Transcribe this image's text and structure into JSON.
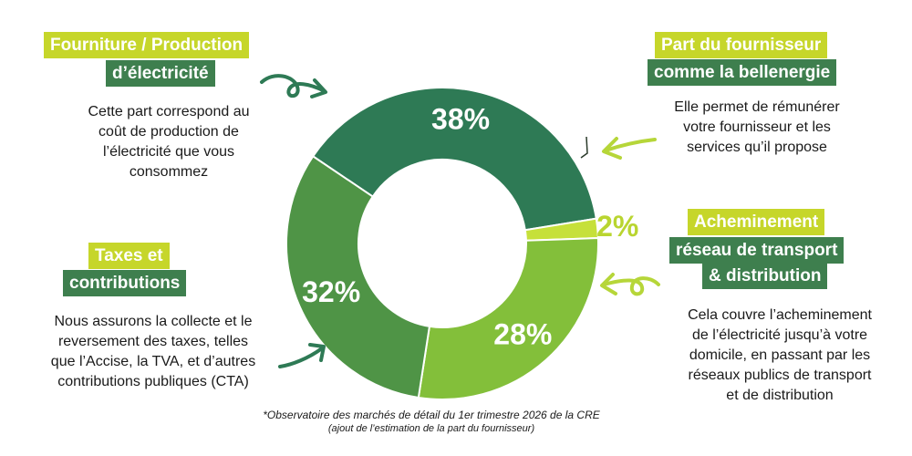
{
  "colors": {
    "fourniture": "#2e7a55",
    "fournisseur": "#c6e03a",
    "acheminement": "#83bf3a",
    "taxes": "#4f9446",
    "label_lime": "#c6d62a",
    "label_green": "#3e7f4e",
    "arrow_green": "#2e7a55",
    "arrow_lime": "#b6d639"
  },
  "chart_data": {
    "type": "pie",
    "variant": "donut",
    "series": [
      {
        "name": "Fourniture / Production d'électricité",
        "value": 38,
        "label": "38%"
      },
      {
        "name": "Part du fournisseur comme la bellenergie",
        "value": 2,
        "label": "2%"
      },
      {
        "name": "Acheminement réseau de transport & distribution",
        "value": 28,
        "label": "28%"
      },
      {
        "name": "Taxes et contributions",
        "value": 32,
        "label": "32%"
      }
    ]
  },
  "sections": {
    "fourniture": {
      "title1": "Fourniture / Production",
      "title2": "d’électricité",
      "desc": [
        "Cette part correspond au",
        "coût de production de",
        "l’électricité que vous",
        "consommez"
      ]
    },
    "fournisseur": {
      "title1": "Part du fournisseur",
      "title2": "comme la bellenergie",
      "desc": [
        "Elle permet de rémunérer",
        "votre fournisseur et les",
        "services qu’il propose"
      ]
    },
    "acheminement": {
      "title1": "Acheminement",
      "title2": "réseau de transport",
      "title3": "& distribution",
      "desc": [
        "Cela couvre l’acheminement",
        "de l’électricité jusqu’à votre",
        "domicile, en passant par les",
        "réseaux publics de transport",
        "et de distribution"
      ]
    },
    "taxes": {
      "title1": "Taxes et",
      "title2": "contributions",
      "desc": [
        "Nous assurons la collecte et le",
        "reversement des taxes, telles",
        "que l’Accise, la TVA, et d’autres",
        "contributions publiques (CTA)"
      ]
    }
  },
  "footnote": {
    "line1": "*Observatoire des marchés de détail du 1er trimestre 2026 de la CRE",
    "line2": "(ajout de l’estimation de la part du fournisseur)"
  }
}
